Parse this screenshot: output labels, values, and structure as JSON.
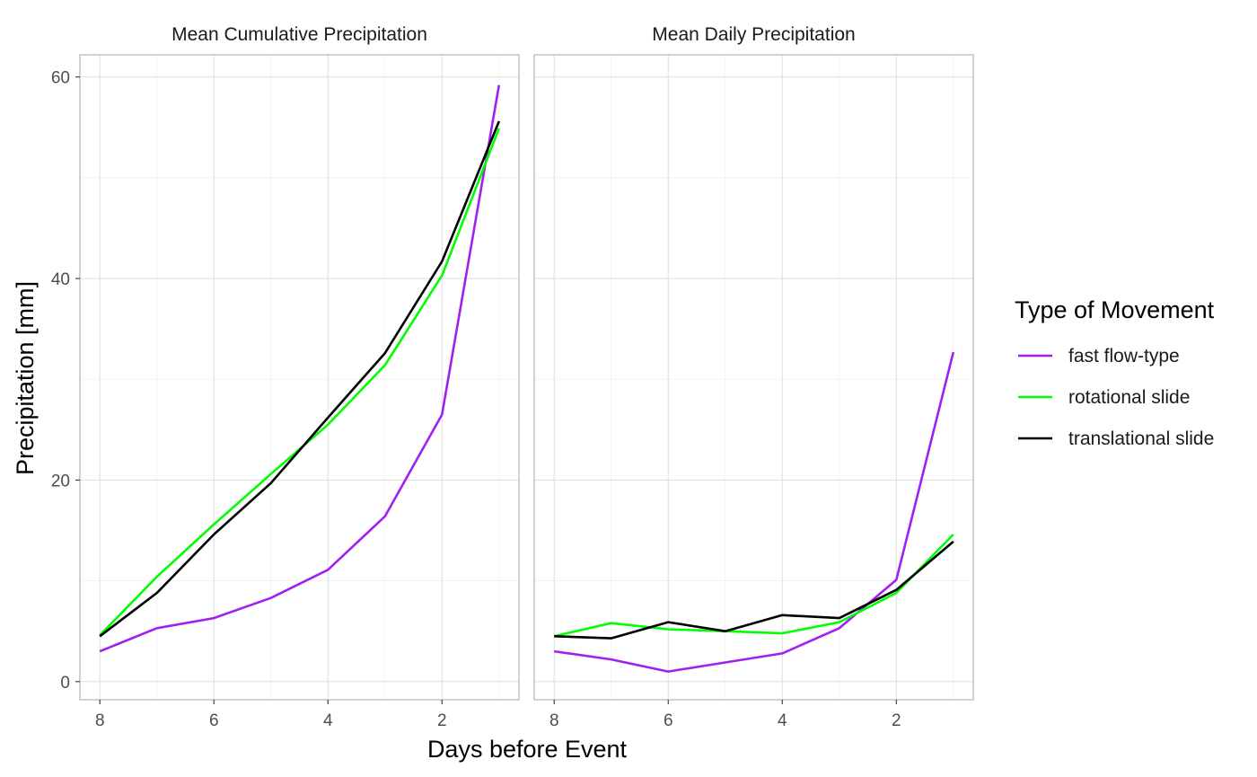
{
  "chart_data": {
    "type": "line",
    "ylabel": "Precipitation [mm]",
    "xlabel": "Days before Event",
    "xlim": [
      8.35,
      0.65
    ],
    "x_reversed": true,
    "ylim": [
      -1.8,
      62.2
    ],
    "x_ticks": [
      "8",
      "6",
      "4",
      "2"
    ],
    "y_ticks": [
      "0",
      "20",
      "40",
      "60"
    ],
    "legend": {
      "title": "Type of Movement",
      "position": "right",
      "entries": [
        {
          "label": "fast flow-type",
          "color": "#a020f0"
        },
        {
          "label": "rotational slide",
          "color": "#00ff00"
        },
        {
          "label": "translational slide",
          "color": "#000000"
        }
      ]
    },
    "grid": true,
    "panels": [
      {
        "title": "Mean Cumulative Precipitation",
        "x": [
          8,
          7,
          6,
          5,
          4,
          3,
          2,
          1
        ],
        "series": [
          {
            "name": "fast flow-type",
            "color": "#a020f0",
            "values": [
              3.0,
              5.3,
              6.3,
              8.3,
              11.1,
              16.4,
              26.5,
              59.2
            ]
          },
          {
            "name": "rotational slide",
            "color": "#00ff00",
            "values": [
              4.6,
              10.4,
              15.6,
              20.6,
              25.5,
              31.4,
              40.3,
              54.9
            ]
          },
          {
            "name": "translational slide",
            "color": "#000000",
            "values": [
              4.5,
              8.8,
              14.6,
              19.7,
              26.2,
              32.6,
              41.7,
              55.6
            ]
          }
        ]
      },
      {
        "title": "Mean Daily Precipitation",
        "x": [
          8,
          7,
          6,
          5,
          4,
          3,
          2,
          1
        ],
        "series": [
          {
            "name": "fast flow-type",
            "color": "#a020f0",
            "values": [
              3.0,
              2.2,
              1.0,
              1.9,
              2.8,
              5.3,
              10.1,
              32.7
            ]
          },
          {
            "name": "rotational slide",
            "color": "#00ff00",
            "values": [
              4.5,
              5.8,
              5.2,
              5.0,
              4.8,
              5.9,
              8.8,
              14.6
            ]
          },
          {
            "name": "translational slide",
            "color": "#000000",
            "values": [
              4.5,
              4.3,
              5.9,
              5.0,
              6.6,
              6.3,
              9.1,
              13.9
            ]
          }
        ]
      }
    ]
  }
}
